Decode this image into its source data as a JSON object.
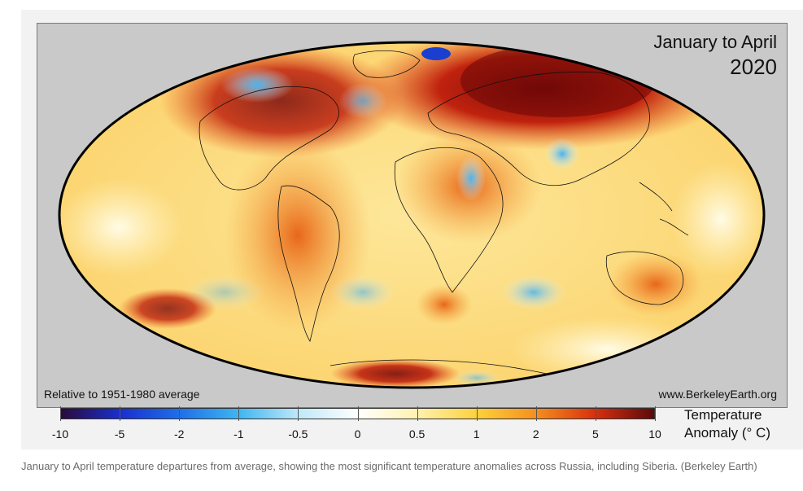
{
  "map": {
    "title_line1": "January to April",
    "title_line2": "2020",
    "baseline_note": "Relative to 1951-1980 average",
    "source_url": "www.BerkeleyEarth.org",
    "projection": "Mollweide",
    "frame_color": "#c9c9c9"
  },
  "legend": {
    "title_line1": "Temperature",
    "title_line2": "Anomaly (° C)",
    "ticks": [
      "-10",
      "-5",
      "-2",
      "-1",
      "-0.5",
      "0",
      "0.5",
      "1",
      "2",
      "5",
      "10"
    ],
    "colors": [
      "#2a0a3a",
      "#1a2fd0",
      "#1f6fe8",
      "#3fb6f2",
      "#bfe8f8",
      "#ffffff",
      "#fff2b0",
      "#fdd23c",
      "#f5901e",
      "#d8300f",
      "#5a0a0a"
    ]
  },
  "caption": "January to April temperature departures from average, showing the most significant temperature anomalies across Russia, including Siberia. (Berkeley Earth)"
}
